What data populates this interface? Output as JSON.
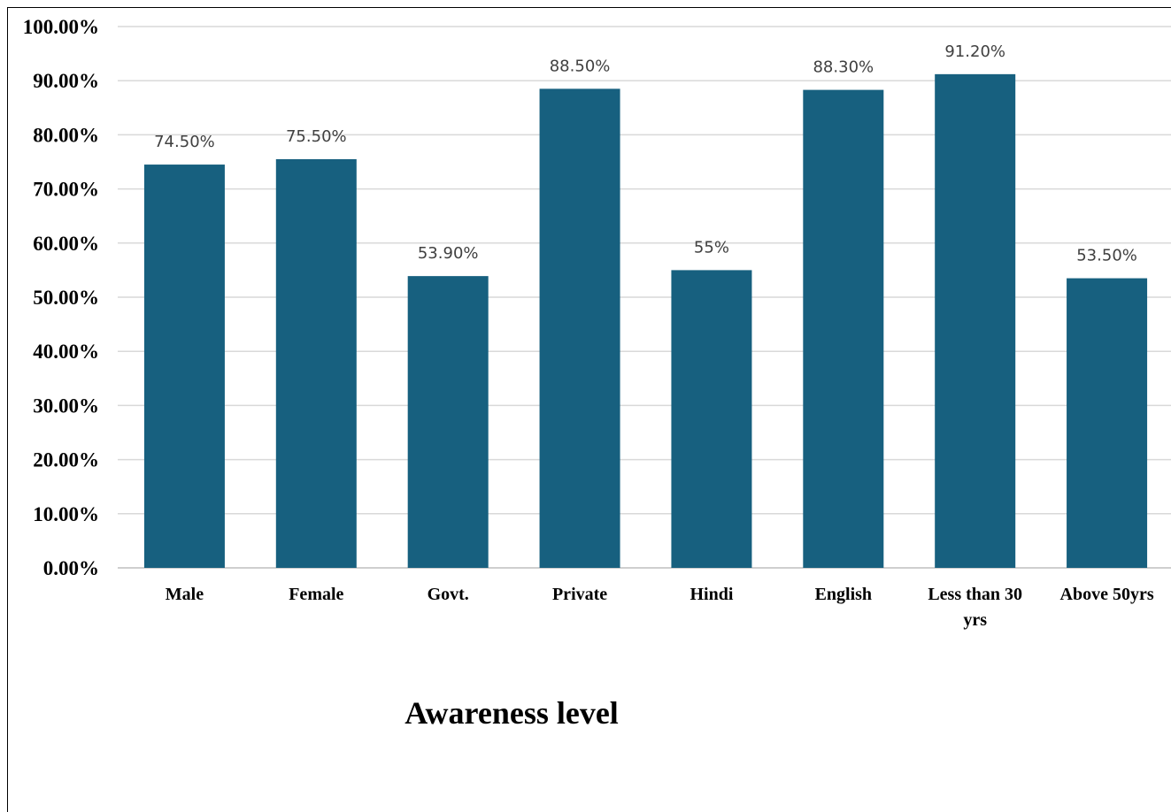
{
  "chart_data": {
    "type": "bar",
    "title": "Awareness level",
    "xlabel": "",
    "ylabel": "",
    "categories": [
      "Male",
      "Female",
      "Govt.",
      "Private",
      "Hindi",
      "English",
      "Less than 30 yrs",
      "Above 50yrs"
    ],
    "values": [
      74.5,
      75.5,
      53.9,
      88.5,
      55,
      88.3,
      91.2,
      53.5
    ],
    "data_labels": [
      "74.50%",
      "75.50%",
      "53.90%",
      "88.50%",
      "55%",
      "88.30%",
      "91.20%",
      "53.50%"
    ],
    "ylim": [
      0,
      100
    ],
    "y_ticks": [
      "0.00%",
      "10.00%",
      "20.00%",
      "30.00%",
      "40.00%",
      "50.00%",
      "60.00%",
      "70.00%",
      "80.00%",
      "90.00%",
      "100.00%"
    ],
    "grid": true,
    "legend": "none",
    "bar_color": "#17607f",
    "grid_color": "#d9d9d9",
    "label_color": "#404040"
  }
}
